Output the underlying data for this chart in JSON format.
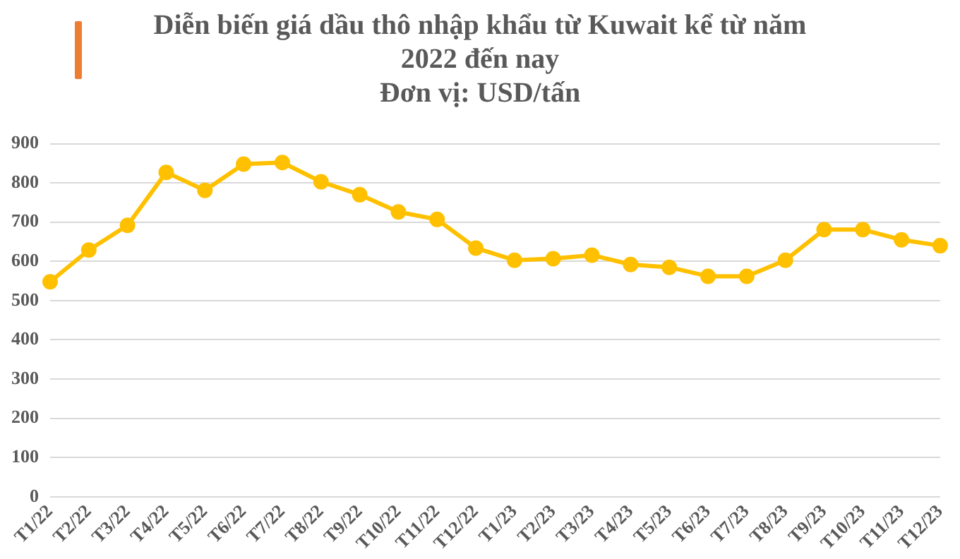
{
  "chart_data": {
    "type": "line",
    "title": "Diễn biến giá dầu thô nhập khẩu từ Kuwait kể từ năm 2022 đến nay",
    "subtitle": "Đơn vị: USD/tấn",
    "categories": [
      "T1/22",
      "T2/22",
      "T3/22",
      "T4/22",
      "T5/22",
      "T6/22",
      "T7/22",
      "T8/22",
      "T9/22",
      "T10/22",
      "T11/22",
      "T12/22",
      "T1/23",
      "T2/23",
      "T3/23",
      "T4/23",
      "T5/23",
      "T6/23",
      "T7/23",
      "T8/23",
      "T9/23",
      "T10/23",
      "T11/23",
      "T12/23"
    ],
    "series": [
      {
        "color": "#ffc000",
        "values": [
          548,
          629,
          692,
          827,
          781,
          848,
          852,
          803,
          770,
          726,
          707,
          634,
          603,
          607,
          616,
          592,
          585,
          562,
          562,
          603,
          681,
          681,
          655,
          640
        ]
      }
    ],
    "ylim": [
      0,
      900
    ],
    "yticks": [
      0,
      100,
      200,
      300,
      400,
      500,
      600,
      700,
      800,
      900
    ],
    "grid": "y",
    "legend": false,
    "marker": "circle",
    "line_style": "solid"
  }
}
